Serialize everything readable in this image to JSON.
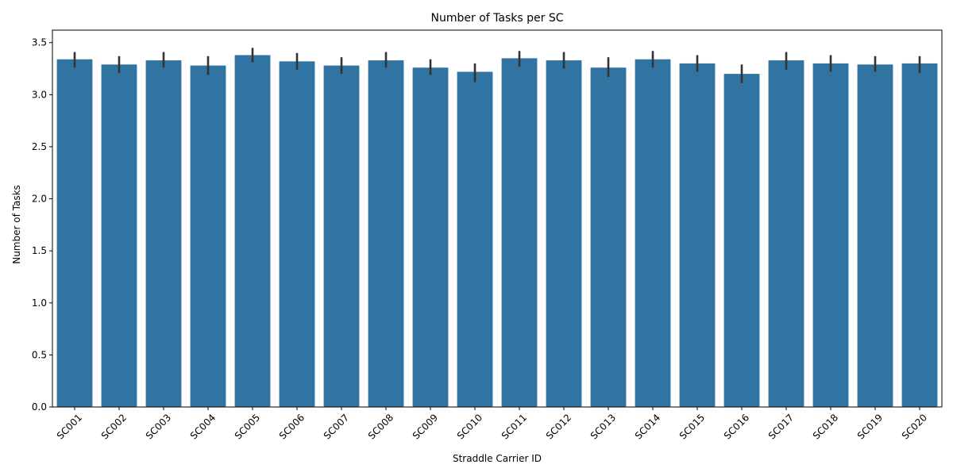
{
  "chart_data": {
    "type": "bar",
    "title": "Number of Tasks per SC",
    "xlabel": "Straddle Carrier ID",
    "ylabel": "Number of Tasks",
    "categories": [
      "SC001",
      "SC002",
      "SC003",
      "SC004",
      "SC005",
      "SC006",
      "SC007",
      "SC008",
      "SC009",
      "SC010",
      "SC011",
      "SC012",
      "SC013",
      "SC014",
      "SC015",
      "SC016",
      "SC017",
      "SC018",
      "SC019",
      "SC020"
    ],
    "values": [
      3.34,
      3.29,
      3.33,
      3.28,
      3.38,
      3.32,
      3.28,
      3.33,
      3.26,
      3.22,
      3.35,
      3.33,
      3.26,
      3.34,
      3.3,
      3.2,
      3.33,
      3.3,
      3.29,
      3.3
    ],
    "error_low": [
      3.26,
      3.21,
      3.26,
      3.19,
      3.31,
      3.24,
      3.2,
      3.26,
      3.19,
      3.12,
      3.27,
      3.25,
      3.17,
      3.26,
      3.22,
      3.11,
      3.24,
      3.22,
      3.22,
      3.21
    ],
    "error_high": [
      3.41,
      3.37,
      3.41,
      3.37,
      3.45,
      3.4,
      3.36,
      3.41,
      3.34,
      3.3,
      3.42,
      3.41,
      3.36,
      3.42,
      3.38,
      3.29,
      3.41,
      3.38,
      3.37,
      3.37
    ],
    "yticks": [
      "0.0",
      "0.5",
      "1.0",
      "1.5",
      "2.0",
      "2.5",
      "3.0",
      "3.5"
    ],
    "ylim": [
      0,
      3.62
    ],
    "bar_color": "#3274a1",
    "error_color": "#333333",
    "grid": false,
    "legend": "none"
  }
}
